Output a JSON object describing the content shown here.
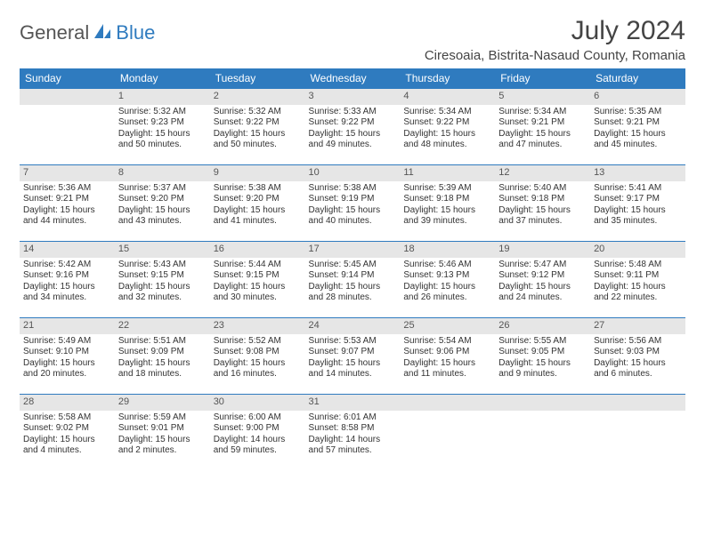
{
  "logo": {
    "part1": "General",
    "part2": "Blue"
  },
  "title": "July 2024",
  "location": "Ciresoaia, Bistrita-Nasaud County, Romania",
  "colors": {
    "header_bg": "#2f7bbf",
    "header_text": "#ffffff",
    "daynum_bg": "#e6e6e6",
    "border": "#2f7bbf",
    "page_bg": "#ffffff",
    "text": "#333333"
  },
  "weekdays": [
    "Sunday",
    "Monday",
    "Tuesday",
    "Wednesday",
    "Thursday",
    "Friday",
    "Saturday"
  ],
  "weeks": [
    [
      {
        "n": "",
        "sr": "",
        "ss": "",
        "dl": ""
      },
      {
        "n": "1",
        "sr": "Sunrise: 5:32 AM",
        "ss": "Sunset: 9:23 PM",
        "dl": "Daylight: 15 hours and 50 minutes."
      },
      {
        "n": "2",
        "sr": "Sunrise: 5:32 AM",
        "ss": "Sunset: 9:22 PM",
        "dl": "Daylight: 15 hours and 50 minutes."
      },
      {
        "n": "3",
        "sr": "Sunrise: 5:33 AM",
        "ss": "Sunset: 9:22 PM",
        "dl": "Daylight: 15 hours and 49 minutes."
      },
      {
        "n": "4",
        "sr": "Sunrise: 5:34 AM",
        "ss": "Sunset: 9:22 PM",
        "dl": "Daylight: 15 hours and 48 minutes."
      },
      {
        "n": "5",
        "sr": "Sunrise: 5:34 AM",
        "ss": "Sunset: 9:21 PM",
        "dl": "Daylight: 15 hours and 47 minutes."
      },
      {
        "n": "6",
        "sr": "Sunrise: 5:35 AM",
        "ss": "Sunset: 9:21 PM",
        "dl": "Daylight: 15 hours and 45 minutes."
      }
    ],
    [
      {
        "n": "7",
        "sr": "Sunrise: 5:36 AM",
        "ss": "Sunset: 9:21 PM",
        "dl": "Daylight: 15 hours and 44 minutes."
      },
      {
        "n": "8",
        "sr": "Sunrise: 5:37 AM",
        "ss": "Sunset: 9:20 PM",
        "dl": "Daylight: 15 hours and 43 minutes."
      },
      {
        "n": "9",
        "sr": "Sunrise: 5:38 AM",
        "ss": "Sunset: 9:20 PM",
        "dl": "Daylight: 15 hours and 41 minutes."
      },
      {
        "n": "10",
        "sr": "Sunrise: 5:38 AM",
        "ss": "Sunset: 9:19 PM",
        "dl": "Daylight: 15 hours and 40 minutes."
      },
      {
        "n": "11",
        "sr": "Sunrise: 5:39 AM",
        "ss": "Sunset: 9:18 PM",
        "dl": "Daylight: 15 hours and 39 minutes."
      },
      {
        "n": "12",
        "sr": "Sunrise: 5:40 AM",
        "ss": "Sunset: 9:18 PM",
        "dl": "Daylight: 15 hours and 37 minutes."
      },
      {
        "n": "13",
        "sr": "Sunrise: 5:41 AM",
        "ss": "Sunset: 9:17 PM",
        "dl": "Daylight: 15 hours and 35 minutes."
      }
    ],
    [
      {
        "n": "14",
        "sr": "Sunrise: 5:42 AM",
        "ss": "Sunset: 9:16 PM",
        "dl": "Daylight: 15 hours and 34 minutes."
      },
      {
        "n": "15",
        "sr": "Sunrise: 5:43 AM",
        "ss": "Sunset: 9:15 PM",
        "dl": "Daylight: 15 hours and 32 minutes."
      },
      {
        "n": "16",
        "sr": "Sunrise: 5:44 AM",
        "ss": "Sunset: 9:15 PM",
        "dl": "Daylight: 15 hours and 30 minutes."
      },
      {
        "n": "17",
        "sr": "Sunrise: 5:45 AM",
        "ss": "Sunset: 9:14 PM",
        "dl": "Daylight: 15 hours and 28 minutes."
      },
      {
        "n": "18",
        "sr": "Sunrise: 5:46 AM",
        "ss": "Sunset: 9:13 PM",
        "dl": "Daylight: 15 hours and 26 minutes."
      },
      {
        "n": "19",
        "sr": "Sunrise: 5:47 AM",
        "ss": "Sunset: 9:12 PM",
        "dl": "Daylight: 15 hours and 24 minutes."
      },
      {
        "n": "20",
        "sr": "Sunrise: 5:48 AM",
        "ss": "Sunset: 9:11 PM",
        "dl": "Daylight: 15 hours and 22 minutes."
      }
    ],
    [
      {
        "n": "21",
        "sr": "Sunrise: 5:49 AM",
        "ss": "Sunset: 9:10 PM",
        "dl": "Daylight: 15 hours and 20 minutes."
      },
      {
        "n": "22",
        "sr": "Sunrise: 5:51 AM",
        "ss": "Sunset: 9:09 PM",
        "dl": "Daylight: 15 hours and 18 minutes."
      },
      {
        "n": "23",
        "sr": "Sunrise: 5:52 AM",
        "ss": "Sunset: 9:08 PM",
        "dl": "Daylight: 15 hours and 16 minutes."
      },
      {
        "n": "24",
        "sr": "Sunrise: 5:53 AM",
        "ss": "Sunset: 9:07 PM",
        "dl": "Daylight: 15 hours and 14 minutes."
      },
      {
        "n": "25",
        "sr": "Sunrise: 5:54 AM",
        "ss": "Sunset: 9:06 PM",
        "dl": "Daylight: 15 hours and 11 minutes."
      },
      {
        "n": "26",
        "sr": "Sunrise: 5:55 AM",
        "ss": "Sunset: 9:05 PM",
        "dl": "Daylight: 15 hours and 9 minutes."
      },
      {
        "n": "27",
        "sr": "Sunrise: 5:56 AM",
        "ss": "Sunset: 9:03 PM",
        "dl": "Daylight: 15 hours and 6 minutes."
      }
    ],
    [
      {
        "n": "28",
        "sr": "Sunrise: 5:58 AM",
        "ss": "Sunset: 9:02 PM",
        "dl": "Daylight: 15 hours and 4 minutes."
      },
      {
        "n": "29",
        "sr": "Sunrise: 5:59 AM",
        "ss": "Sunset: 9:01 PM",
        "dl": "Daylight: 15 hours and 2 minutes."
      },
      {
        "n": "30",
        "sr": "Sunrise: 6:00 AM",
        "ss": "Sunset: 9:00 PM",
        "dl": "Daylight: 14 hours and 59 minutes."
      },
      {
        "n": "31",
        "sr": "Sunrise: 6:01 AM",
        "ss": "Sunset: 8:58 PM",
        "dl": "Daylight: 14 hours and 57 minutes."
      },
      {
        "n": "",
        "sr": "",
        "ss": "",
        "dl": ""
      },
      {
        "n": "",
        "sr": "",
        "ss": "",
        "dl": ""
      },
      {
        "n": "",
        "sr": "",
        "ss": "",
        "dl": ""
      }
    ]
  ]
}
